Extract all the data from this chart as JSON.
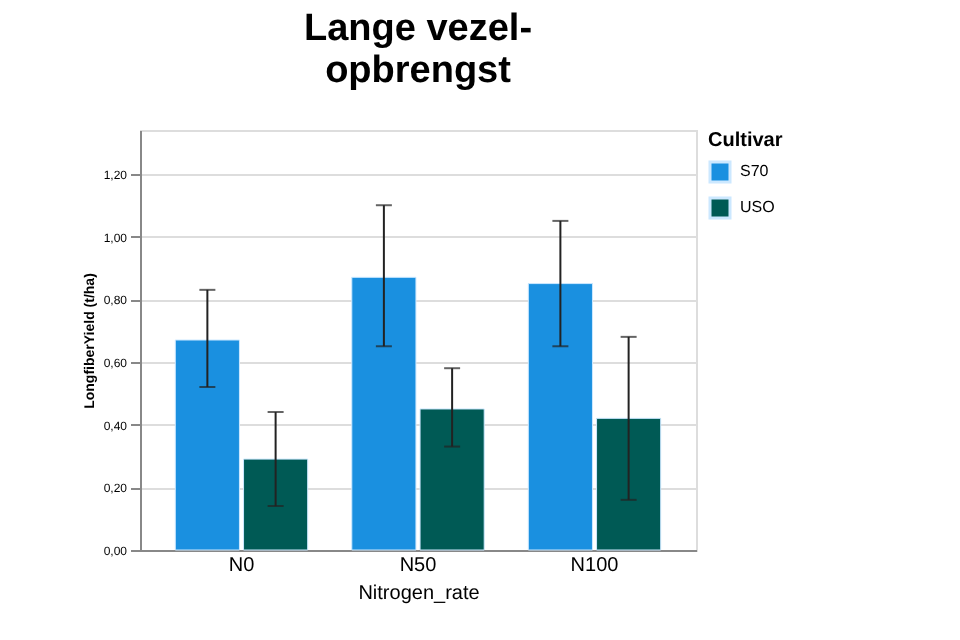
{
  "chart_data": {
    "type": "bar",
    "title": [
      "Lange vezel-",
      "opbrengst"
    ],
    "xlabel": "Nitrogen_rate",
    "ylabel": "LongfiberYield (t/ha)",
    "legend_title": "Cultivar",
    "legend": "top right",
    "categories": [
      "N0",
      "N50",
      "N100"
    ],
    "series": [
      {
        "name": "S70",
        "color": "#1a90e0",
        "values": [
          0.67,
          0.87,
          0.85
        ],
        "errors": [
          [
            0.52,
            0.83
          ],
          [
            0.65,
            1.1
          ],
          [
            0.65,
            1.05
          ]
        ]
      },
      {
        "name": "USO",
        "color": "#005a55",
        "values": [
          0.29,
          0.45,
          0.42
        ],
        "errors": [
          [
            0.14,
            0.44
          ],
          [
            0.33,
            0.58
          ],
          [
            0.16,
            0.68
          ]
        ]
      }
    ],
    "ylim": [
      0,
      1.34
    ],
    "yticks": [
      {
        "value": 0,
        "label": "0,00"
      },
      {
        "value": 0.2,
        "label": "0,20"
      },
      {
        "value": 0.4,
        "label": "0,40"
      },
      {
        "value": 0.6,
        "label": "0,60"
      },
      {
        "value": 0.8,
        "label": "0,80"
      },
      {
        "value": 1.0,
        "label": "1,00"
      },
      {
        "value": 1.2,
        "label": "1,20"
      }
    ],
    "grid": "y"
  }
}
